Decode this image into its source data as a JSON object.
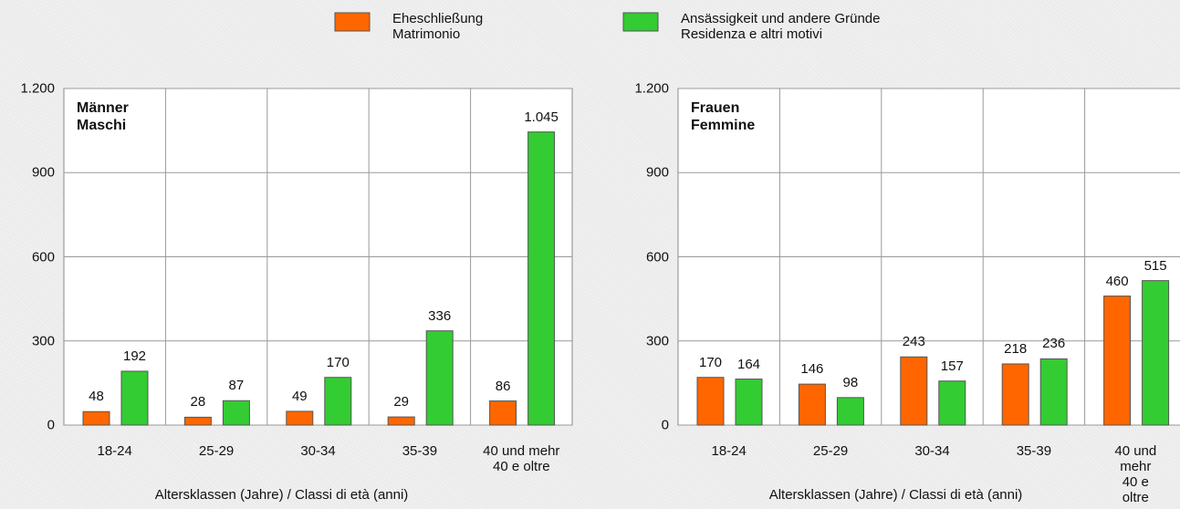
{
  "chart_data": [
    {
      "type": "bar",
      "title": "Männer\nMaschi",
      "x_label": "Altersklassen (Jahre) / Classi di età (anni)",
      "categories": [
        "18-24",
        "25-29",
        "30-34",
        "35-39",
        "40 und mehr\n40 e oltre"
      ],
      "series": [
        {
          "name": "Eheschließung\nMatrimonio",
          "color": "#ff6600",
          "values": [
            48,
            28,
            49,
            29,
            86
          ]
        },
        {
          "name": "Ansässigkeit und andere Gründe\nResidenza e altri motivi",
          "color": "#33cc33",
          "values": [
            192,
            87,
            170,
            336,
            1045
          ],
          "value_labels": [
            "192",
            "87",
            "170",
            "336",
            "1.045"
          ]
        }
      ],
      "ylim": [
        0,
        1200
      ],
      "yticks": [
        0,
        300,
        600,
        900,
        {
          "value": 1200,
          "label": "1.200"
        }
      ],
      "grid": true
    },
    {
      "type": "bar",
      "title": "Frauen\nFemmine",
      "x_label": "Altersklassen (Jahre) / Classi di età (anni)",
      "categories": [
        "18-24",
        "25-29",
        "30-34",
        "35-39",
        "40 und mehr\n40 e oltre"
      ],
      "series": [
        {
          "color": "#ff6600",
          "values": [
            170,
            146,
            243,
            218,
            460
          ]
        },
        {
          "color": "#33cc33",
          "values": [
            164,
            98,
            157,
            236,
            515
          ]
        }
      ],
      "ylim": [
        0,
        1200
      ],
      "yticks": [
        0,
        300,
        600,
        900,
        {
          "value": 1200,
          "label": "1.200"
        }
      ],
      "grid": true
    }
  ]
}
